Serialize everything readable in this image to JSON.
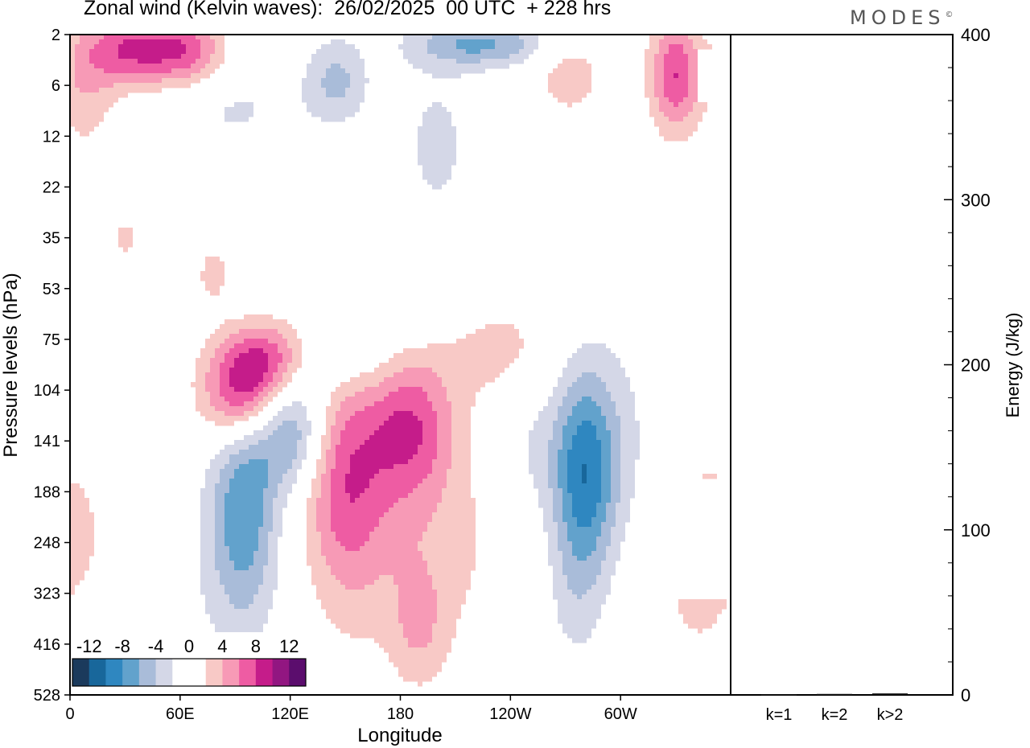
{
  "header": {
    "title": "Zonal wind (Kelvin waves):  26/02/2025  00 UTC  + 228 hrs",
    "brand": "MODES",
    "brand_mark": "©"
  },
  "colors": {
    "neg": [
      "#1b3a5c",
      "#18679b",
      "#2f87c0",
      "#62a2cc",
      "#a9bcd9",
      "#d4d7e7"
    ],
    "zero": "#ffffff",
    "pos": [
      "#f8c9c6",
      "#f79ab6",
      "#ee5ca3",
      "#c51c8a",
      "#921681",
      "#5b0d6d"
    ]
  },
  "chart_data": [
    {
      "type": "heatmap",
      "title": "Zonal wind (Kelvin waves):  26/02/2025  00 UTC  + 228 hrs",
      "xlabel": "Longitude",
      "ylabel": "Pressure levels (hPa)",
      "xticks": [
        "0",
        "60E",
        "120E",
        "180",
        "120W",
        "60W"
      ],
      "xtick_lon": [
        0,
        60,
        120,
        180,
        240,
        300
      ],
      "xlim": [
        0,
        360
      ],
      "yticks": [
        "2",
        "6",
        "12",
        "22",
        "35",
        "53",
        "75",
        "104",
        "141",
        "188",
        "248",
        "323",
        "416",
        "528"
      ],
      "colorbar_labels": [
        "-12",
        "-8",
        "-4",
        "0",
        "4",
        "8",
        "12"
      ],
      "levels": [
        -12,
        -10,
        -8,
        -6,
        -4,
        -2,
        2,
        4,
        6,
        8,
        10,
        12
      ],
      "features": [
        {
          "lon": 35,
          "level": 0.3,
          "sx": 18,
          "sy": 0.5,
          "v": 8
        },
        {
          "lon": 65,
          "level": 0.3,
          "sx": 14,
          "sy": 0.5,
          "v": 6
        },
        {
          "lon": 8,
          "level": 1.0,
          "sx": 12,
          "sy": 0.9,
          "v": 3.5
        },
        {
          "lon": 330,
          "level": 0.8,
          "sx": 10,
          "sy": 0.8,
          "v": 8
        },
        {
          "lon": 272,
          "level": 0.8,
          "sx": 14,
          "sy": 0.6,
          "v": 3.2
        },
        {
          "lon": 145,
          "level": 0.9,
          "sx": 12,
          "sy": 0.6,
          "v": -4.5
        },
        {
          "lon": 225,
          "level": 0.2,
          "sx": 26,
          "sy": 0.3,
          "v": -6
        },
        {
          "lon": 200,
          "level": 2.2,
          "sx": 20,
          "sy": 1.6,
          "v": -2.3
        },
        {
          "lon": 90,
          "level": 1.5,
          "sx": 26,
          "sy": 0.6,
          "v": -2.2
        },
        {
          "lon": 95,
          "level": 7.0,
          "sx": 16,
          "sy": 0.7,
          "v": 10
        },
        {
          "lon": 110,
          "level": 6.3,
          "sx": 16,
          "sy": 0.5,
          "v": 5
        },
        {
          "lon": 120,
          "level": 7.8,
          "sx": 14,
          "sy": 0.8,
          "v": -7
        },
        {
          "lon": 95,
          "level": 9.2,
          "sx": 12,
          "sy": 1.4,
          "v": -6
        },
        {
          "lon": 150,
          "level": 6.3,
          "sx": 20,
          "sy": 0.6,
          "v": -3
        },
        {
          "lon": 200,
          "level": 5.3,
          "sx": 26,
          "sy": 0.5,
          "v": -2.5
        },
        {
          "lon": 90,
          "level": 10.4,
          "sx": 20,
          "sy": 1.6,
          "v": -2.5
        },
        {
          "lon": 150,
          "level": 8.7,
          "sx": 16,
          "sy": 1.6,
          "v": 6.5
        },
        {
          "lon": 185,
          "level": 7.7,
          "sx": 16,
          "sy": 1.0,
          "v": 6.5
        },
        {
          "lon": 190,
          "level": 9.8,
          "sx": 36,
          "sy": 2.0,
          "v": 3
        },
        {
          "lon": 230,
          "level": 6.0,
          "sx": 22,
          "sy": 0.8,
          "v": 3
        },
        {
          "lon": 280,
          "level": 8.6,
          "sx": 12,
          "sy": 1.4,
          "v": -8.5
        },
        {
          "lon": 300,
          "level": 8.2,
          "sx": 16,
          "sy": 1.6,
          "v": -2.5
        },
        {
          "lon": 250,
          "level": 8.2,
          "sx": 16,
          "sy": 1.0,
          "v": -2.3
        },
        {
          "lon": 350,
          "level": 10.2,
          "sx": 26,
          "sy": 1.8,
          "v": 3.2
        },
        {
          "lon": 355,
          "level": 7.0,
          "sx": 10,
          "sy": 0.8,
          "v": -2.3
        },
        {
          "lon": 190,
          "level": 11.6,
          "sx": 10,
          "sy": 0.8,
          "v": 3
        },
        {
          "lon": 78,
          "level": 4.7,
          "sx": 8,
          "sy": 0.5,
          "v": 2.6
        },
        {
          "lon": 30,
          "level": 4.0,
          "sx": 8,
          "sy": 0.4,
          "v": 2.4
        },
        {
          "lon": 10,
          "level": 12.8,
          "sx": 12,
          "sy": 1.2,
          "v": -2.4
        },
        {
          "lon": 275,
          "level": 11.0,
          "sx": 12,
          "sy": 1.2,
          "v": -2.3
        }
      ]
    },
    {
      "type": "bar",
      "ylabel": "Energy (J/kg)",
      "ylim": [
        0,
        400
      ],
      "yticks": [
        "0",
        "100",
        "200",
        "300",
        "400"
      ],
      "categories": [
        "k=1",
        "k=2",
        "k>2"
      ],
      "values": [
        0.3,
        0.6,
        0.9
      ]
    }
  ]
}
